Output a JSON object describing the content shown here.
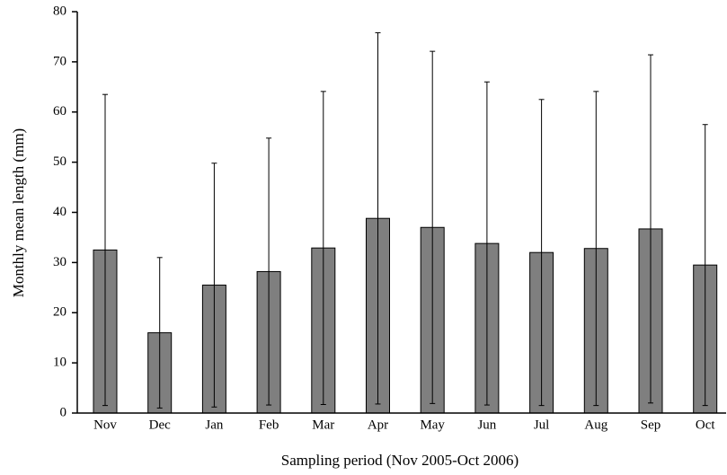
{
  "chart_data": {
    "type": "bar",
    "x_label": "Sampling period (Nov 2005-Oct 2006)",
    "y_label": "Monthly mean length (mm)",
    "categories": [
      "Nov",
      "Dec",
      "Jan",
      "Feb",
      "Mar",
      "Apr",
      "May",
      "Jun",
      "Jul",
      "Aug",
      "Sep",
      "Oct"
    ],
    "values": [
      32.5,
      16,
      25.5,
      28.2,
      32.9,
      38.8,
      37,
      33.8,
      32,
      32.8,
      36.7,
      29.5
    ],
    "errors": [
      31,
      15,
      24.3,
      26.6,
      31.2,
      37,
      35.1,
      32.2,
      30.5,
      31.3,
      34.7,
      28
    ],
    "color": "#7f7f7f",
    "ylim": [
      0,
      80
    ],
    "yticks": [
      0,
      10,
      20,
      30,
      40,
      50,
      60,
      70,
      80
    ],
    "grid": false
  }
}
